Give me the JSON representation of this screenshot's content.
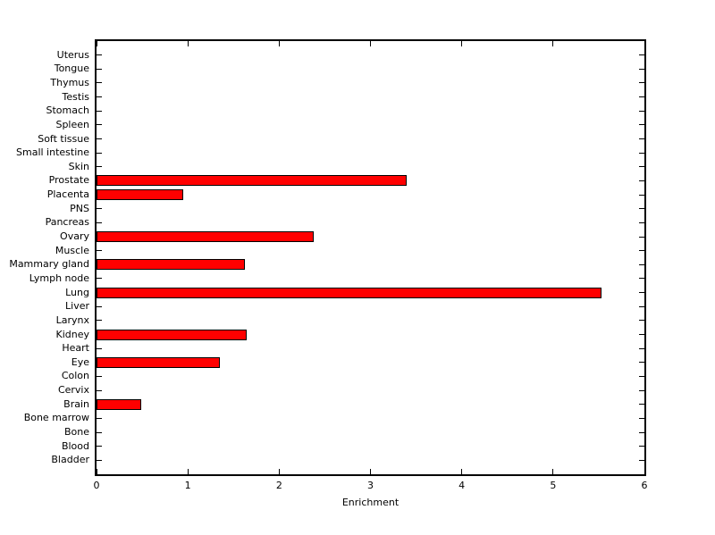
{
  "figure": {
    "background": "#ffffff",
    "axis_color": "#000000",
    "text_color": "#000000"
  },
  "chart_data": {
    "type": "bar",
    "orientation": "horizontal",
    "title": "",
    "xlabel": "Enrichment",
    "ylabel": "",
    "xlim": [
      0,
      6
    ],
    "x_ticks": [
      "0",
      "1",
      "2",
      "3",
      "4",
      "5",
      "6"
    ],
    "grid": false,
    "legend_position": "none",
    "bar_color": "#ff0000",
    "bar_edge_color": "#000000",
    "categories_order": "top-to-bottom",
    "categories": [
      "Uterus",
      "Tongue",
      "Thymus",
      "Testis",
      "Stomach",
      "Spleen",
      "Soft tissue",
      "Small intestine",
      "Skin",
      "Prostate",
      "Placenta",
      "PNS",
      "Pancreas",
      "Ovary",
      "Muscle",
      "Mammary gland",
      "Lymph node",
      "Lung",
      "Liver",
      "Larynx",
      "Kidney",
      "Heart",
      "Eye",
      "Colon",
      "Cervix",
      "Brain",
      "Bone marrow",
      "Bone",
      "Blood",
      "Bladder"
    ],
    "values": [
      0,
      0,
      0,
      0,
      0,
      0,
      0,
      0,
      0,
      3.4,
      0.95,
      0,
      0,
      2.38,
      0,
      1.62,
      0,
      5.53,
      0,
      0,
      1.64,
      0,
      1.35,
      0,
      0,
      0.49,
      0,
      0,
      0,
      0
    ]
  }
}
